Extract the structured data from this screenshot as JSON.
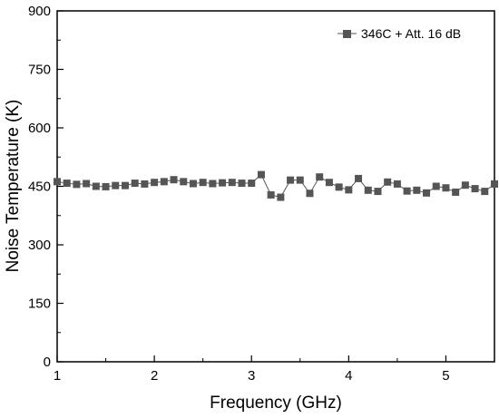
{
  "chart_data": {
    "type": "line",
    "xlabel": "Frequency (GHz)",
    "ylabel": "Noise Temperature (K)",
    "xlim": [
      1,
      5.5
    ],
    "ylim": [
      0,
      900
    ],
    "xticks": [
      1,
      2,
      3,
      4,
      5
    ],
    "yticks": [
      0,
      150,
      300,
      450,
      600,
      750,
      900
    ],
    "grid": false,
    "legend_position": "top-right",
    "series": [
      {
        "name": "346C + Att. 16 dB",
        "color": "#555555",
        "marker": "square",
        "x": [
          1.0,
          1.1,
          1.2,
          1.3,
          1.4,
          1.5,
          1.6,
          1.7,
          1.8,
          1.9,
          2.0,
          2.1,
          2.2,
          2.3,
          2.4,
          2.5,
          2.6,
          2.7,
          2.8,
          2.9,
          3.0,
          3.1,
          3.2,
          3.3,
          3.4,
          3.5,
          3.6,
          3.7,
          3.8,
          3.9,
          4.0,
          4.1,
          4.2,
          4.3,
          4.4,
          4.5,
          4.6,
          4.7,
          4.8,
          4.9,
          5.0,
          5.1,
          5.2,
          5.3,
          5.4,
          5.5
        ],
        "y": [
          462,
          458,
          455,
          457,
          450,
          449,
          452,
          452,
          458,
          456,
          460,
          462,
          467,
          462,
          457,
          460,
          457,
          459,
          460,
          458,
          458,
          480,
          428,
          422,
          466,
          466,
          432,
          474,
          460,
          448,
          441,
          470,
          440,
          437,
          461,
          456,
          438,
          440,
          433,
          450,
          446,
          435,
          453,
          444,
          437,
          456
        ]
      }
    ]
  }
}
